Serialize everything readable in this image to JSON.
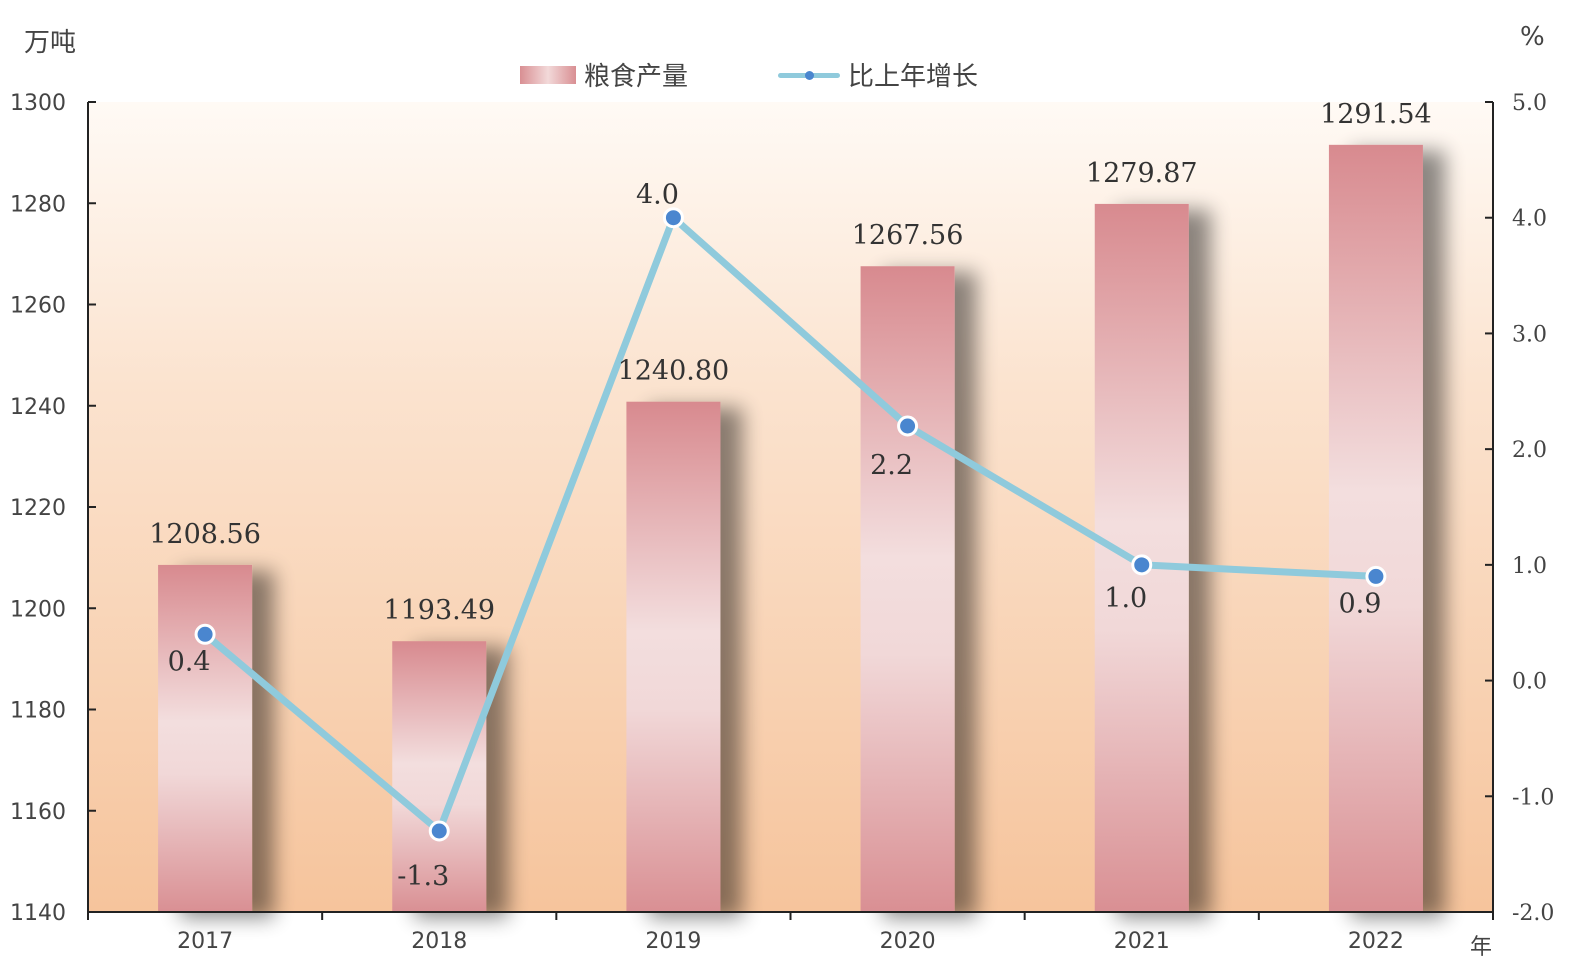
{
  "chart_data": {
    "type": "bar+line",
    "categories": [
      "2017",
      "2018",
      "2019",
      "2020",
      "2021",
      "2022"
    ],
    "series": [
      {
        "name": "粮食产量",
        "type": "bar",
        "axis": "left",
        "values": [
          1208.56,
          1193.49,
          1240.8,
          1267.56,
          1279.87,
          1291.54
        ],
        "labels": [
          "1208.56",
          "1193.49",
          "1240.80",
          "1267.56",
          "1279.87",
          "1291.54"
        ]
      },
      {
        "name": "比上年增长",
        "type": "line",
        "axis": "right",
        "values": [
          0.4,
          -1.3,
          4.0,
          2.2,
          1.0,
          0.9
        ],
        "labels": [
          "0.4",
          "-1.3",
          "4.0",
          "2.2",
          "1.0",
          "0.9"
        ]
      }
    ],
    "y_left": {
      "unit": "万吨",
      "min": 1140,
      "max": 1300,
      "step": 20,
      "ticks": [
        "1140",
        "1160",
        "1180",
        "1200",
        "1220",
        "1240",
        "1260",
        "1280",
        "1300"
      ]
    },
    "y_right": {
      "unit": "%",
      "min": -2.0,
      "max": 5.0,
      "step": 1.0,
      "ticks": [
        "-2.0",
        "-1.0",
        "0.0",
        "1.0",
        "2.0",
        "3.0",
        "4.0",
        "5.0"
      ]
    },
    "x_unit": "年",
    "legend_position": "top-center",
    "grid": false,
    "colors": {
      "bar": "#d98f93",
      "bar_highlight": "#f3e1e1",
      "line": "#8fcadc",
      "marker": "#4a86cf",
      "background_top": "#fdf3ea",
      "background_bottom": "#f6c49c"
    }
  }
}
